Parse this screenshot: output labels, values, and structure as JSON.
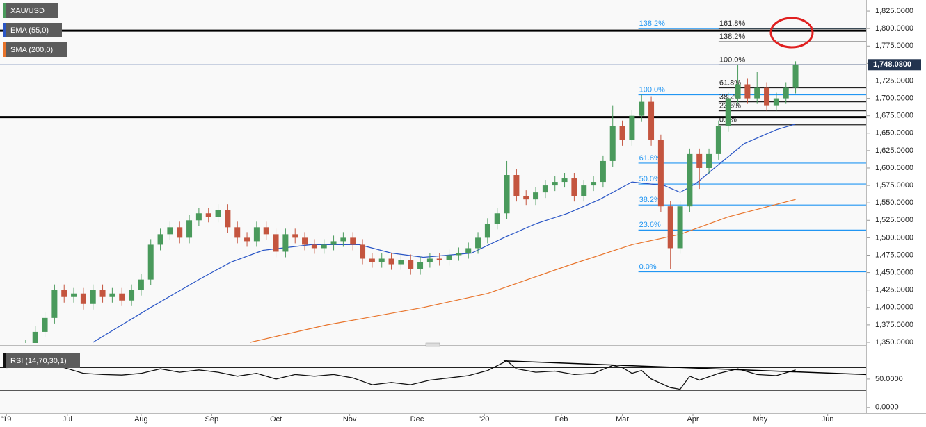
{
  "chart_data": {
    "type": "candlestick",
    "title": "XAU/USD",
    "xlim": [
      -2,
      268
    ],
    "xticks": [
      {
        "value": 0,
        "label": "'19"
      },
      {
        "value": 19,
        "label": "Jul"
      },
      {
        "value": 42,
        "label": "Aug"
      },
      {
        "value": 64,
        "label": "Sep"
      },
      {
        "value": 84,
        "label": "Oct"
      },
      {
        "value": 107,
        "label": "Nov"
      },
      {
        "value": 128,
        "label": "Dec"
      },
      {
        "value": 149,
        "label": "'20"
      },
      {
        "value": 173,
        "label": "Feb"
      },
      {
        "value": 192,
        "label": "Mar"
      },
      {
        "value": 214,
        "label": "Apr"
      },
      {
        "value": 235,
        "label": "May"
      },
      {
        "value": 256,
        "label": "Jun"
      }
    ],
    "ylim": [
      1349,
      1841
    ],
    "yticks": [
      {
        "value": 1350,
        "label": "1,350.0000"
      },
      {
        "value": 1375,
        "label": "1,375.0000"
      },
      {
        "value": 1400,
        "label": "1,400.0000"
      },
      {
        "value": 1425,
        "label": "1,425.0000"
      },
      {
        "value": 1450,
        "label": "1,450.0000"
      },
      {
        "value": 1475,
        "label": "1,475.0000"
      },
      {
        "value": 1500,
        "label": "1,500.0000"
      },
      {
        "value": 1525,
        "label": "1,525.0000"
      },
      {
        "value": 1550,
        "label": "1,550.0000"
      },
      {
        "value": 1575,
        "label": "1,575.0000"
      },
      {
        "value": 1600,
        "label": "1,600.0000"
      },
      {
        "value": 1625,
        "label": "1,625.0000"
      },
      {
        "value": 1650,
        "label": "1,650.0000"
      },
      {
        "value": 1675,
        "label": "1,675.0000"
      },
      {
        "value": 1700,
        "label": "1,700.0000"
      },
      {
        "value": 1725,
        "label": "1,725.0000"
      },
      {
        "value": 1750,
        "label": "1,750.0000"
      },
      {
        "value": 1775,
        "label": "1,775.0000"
      },
      {
        "value": 1800,
        "label": "1,800.0000"
      },
      {
        "value": 1825,
        "label": "1,825.0000"
      }
    ],
    "last_price": {
      "value": 1748.08,
      "label": "1,748.0800"
    },
    "up_color": "#4a9a5c",
    "down_color": "#c4553f",
    "x": [
      6,
      9,
      12,
      15,
      18,
      21,
      24,
      27,
      30,
      33,
      36,
      39,
      42,
      45,
      48,
      51,
      54,
      57,
      60,
      63,
      66,
      69,
      72,
      75,
      78,
      81,
      84,
      87,
      90,
      93,
      96,
      99,
      102,
      105,
      108,
      111,
      114,
      117,
      120,
      123,
      126,
      129,
      132,
      135,
      138,
      141,
      144,
      147,
      150,
      153,
      156,
      159,
      162,
      165,
      168,
      171,
      174,
      177,
      180,
      183,
      186,
      189,
      192,
      195,
      198,
      201,
      204,
      207,
      210,
      213,
      216,
      219,
      222,
      225,
      228,
      231,
      234,
      237,
      240,
      243,
      246
    ],
    "open": [
      1335,
      1345,
      1365,
      1385,
      1425,
      1415,
      1420,
      1405,
      1425,
      1415,
      1420,
      1410,
      1425,
      1440,
      1490,
      1505,
      1515,
      1500,
      1525,
      1535,
      1530,
      1540,
      1515,
      1500,
      1495,
      1515,
      1505,
      1480,
      1505,
      1500,
      1490,
      1485,
      1490,
      1495,
      1500,
      1490,
      1470,
      1465,
      1470,
      1462,
      1468,
      1455,
      1465,
      1470,
      1468,
      1475,
      1478,
      1485,
      1500,
      1520,
      1535,
      1590,
      1560,
      1555,
      1565,
      1575,
      1580,
      1585,
      1560,
      1575,
      1580,
      1610,
      1660,
      1640,
      1675,
      1695,
      1640,
      1545,
      1485,
      1545,
      1620,
      1600,
      1620,
      1660,
      1700,
      1720,
      1700,
      1715,
      1690,
      1700,
      1715
    ],
    "high": [
      1353,
      1373,
      1393,
      1433,
      1433,
      1428,
      1428,
      1433,
      1433,
      1428,
      1428,
      1433,
      1448,
      1498,
      1513,
      1523,
      1523,
      1533,
      1543,
      1543,
      1548,
      1548,
      1523,
      1508,
      1523,
      1523,
      1513,
      1513,
      1513,
      1508,
      1498,
      1498,
      1503,
      1508,
      1508,
      1498,
      1478,
      1478,
      1478,
      1476,
      1476,
      1473,
      1478,
      1478,
      1483,
      1486,
      1493,
      1508,
      1528,
      1543,
      1610,
      1598,
      1568,
      1573,
      1583,
      1588,
      1593,
      1593,
      1583,
      1588,
      1618,
      1690,
      1668,
      1683,
      1705,
      1703,
      1648,
      1553,
      1553,
      1628,
      1628,
      1628,
      1668,
      1708,
      1748,
      1728,
      1738,
      1723,
      1708,
      1723,
      1753
    ],
    "low": [
      1327,
      1337,
      1357,
      1377,
      1407,
      1407,
      1397,
      1397,
      1407,
      1407,
      1402,
      1402,
      1417,
      1432,
      1482,
      1497,
      1492,
      1492,
      1517,
      1522,
      1522,
      1507,
      1492,
      1487,
      1487,
      1497,
      1472,
      1472,
      1492,
      1482,
      1477,
      1477,
      1482,
      1487,
      1482,
      1462,
      1457,
      1457,
      1454,
      1454,
      1447,
      1447,
      1457,
      1460,
      1460,
      1467,
      1470,
      1477,
      1492,
      1512,
      1527,
      1552,
      1547,
      1547,
      1557,
      1567,
      1572,
      1552,
      1552,
      1567,
      1572,
      1602,
      1632,
      1632,
      1667,
      1632,
      1537,
      1455,
      1477,
      1537,
      1570,
      1592,
      1612,
      1652,
      1692,
      1692,
      1692,
      1682,
      1682,
      1692,
      1707
    ],
    "close": [
      1345,
      1365,
      1385,
      1425,
      1415,
      1420,
      1405,
      1425,
      1415,
      1420,
      1410,
      1425,
      1440,
      1490,
      1505,
      1515,
      1500,
      1525,
      1535,
      1530,
      1540,
      1515,
      1500,
      1495,
      1515,
      1505,
      1480,
      1505,
      1500,
      1490,
      1485,
      1490,
      1495,
      1500,
      1490,
      1470,
      1465,
      1470,
      1462,
      1468,
      1455,
      1465,
      1470,
      1468,
      1475,
      1478,
      1485,
      1500,
      1520,
      1535,
      1590,
      1560,
      1555,
      1565,
      1575,
      1580,
      1585,
      1560,
      1575,
      1580,
      1610,
      1660,
      1640,
      1675,
      1695,
      1640,
      1545,
      1485,
      1545,
      1620,
      1600,
      1620,
      1660,
      1700,
      1720,
      1700,
      1715,
      1690,
      1700,
      1715,
      1748.08
    ],
    "overlays": [
      {
        "name": "EMA (55,0)",
        "color": "#2a56c6",
        "x": [
          27,
          45,
          60,
          70,
          80,
          95,
          110,
          120,
          130,
          145,
          155,
          165,
          175,
          185,
          195,
          205,
          210,
          215,
          222,
          230,
          240,
          246
        ],
        "values": [
          1350,
          1400,
          1440,
          1465,
          1482,
          1490,
          1490,
          1478,
          1472,
          1478,
          1500,
          1520,
          1535,
          1555,
          1580,
          1575,
          1565,
          1578,
          1605,
          1635,
          1655,
          1663
        ]
      },
      {
        "name": "SMA (200,0)",
        "color": "#e8732a",
        "x": [
          76,
          100,
          130,
          150,
          175,
          195,
          210,
          225,
          246
        ],
        "values": [
          1350,
          1375,
          1400,
          1420,
          1460,
          1490,
          1505,
          1530,
          1555
        ]
      }
    ],
    "hlines": [
      1797,
      1673
    ],
    "fib": [
      {
        "color": "#2196f3",
        "start": 197,
        "levels": [
          {
            "label": "0.0%",
            "price": 1451
          },
          {
            "label": "23.6%",
            "price": 1511
          },
          {
            "label": "38.2%",
            "price": 1547
          },
          {
            "label": "50.0%",
            "price": 1577
          },
          {
            "label": "61.8%",
            "price": 1607
          },
          {
            "label": "100.0%",
            "price": 1705
          },
          {
            "label": "138.2%",
            "price": 1800
          }
        ]
      },
      {
        "color": "#222222",
        "start": 222,
        "levels": [
          {
            "label": "0.0%",
            "price": 1662
          },
          {
            "label": "23.6%",
            "price": 1682
          },
          {
            "label": "38.2%",
            "price": 1695
          },
          {
            "label": "61.8%",
            "price": 1715
          },
          {
            "label": "100.0%",
            "price": 1748
          },
          {
            "label": "138.2%",
            "price": 1781
          },
          {
            "label": "161.8%",
            "price": 1800
          }
        ]
      }
    ],
    "rsi": {
      "name": "RSI (14,70,30,1)",
      "color": "#111111",
      "ylim": [
        -10,
        100
      ],
      "yticks": [
        {
          "value": 0,
          "label": "0.0000"
        },
        {
          "value": 50,
          "label": "50.0000"
        }
      ],
      "bands": [
        70,
        30
      ],
      "x": [
        0,
        6,
        12,
        18,
        24,
        30,
        36,
        42,
        48,
        54,
        60,
        66,
        72,
        78,
        84,
        90,
        96,
        102,
        108,
        114,
        120,
        126,
        132,
        138,
        144,
        150,
        156,
        159,
        165,
        171,
        177,
        183,
        189,
        192,
        195,
        198,
        201,
        207,
        210,
        213,
        216,
        222,
        228,
        234,
        240,
        246
      ],
      "values": [
        70,
        72,
        74,
        70,
        60,
        58,
        57,
        60,
        68,
        62,
        66,
        62,
        55,
        60,
        50,
        58,
        55,
        58,
        52,
        40,
        44,
        40,
        48,
        52,
        56,
        65,
        82,
        68,
        62,
        64,
        58,
        60,
        74,
        70,
        60,
        65,
        50,
        35,
        32,
        55,
        48,
        60,
        68,
        58,
        56,
        66
      ],
      "trendline": {
        "x": [
          155,
          268
        ],
        "values": [
          82,
          58
        ]
      }
    }
  }
}
